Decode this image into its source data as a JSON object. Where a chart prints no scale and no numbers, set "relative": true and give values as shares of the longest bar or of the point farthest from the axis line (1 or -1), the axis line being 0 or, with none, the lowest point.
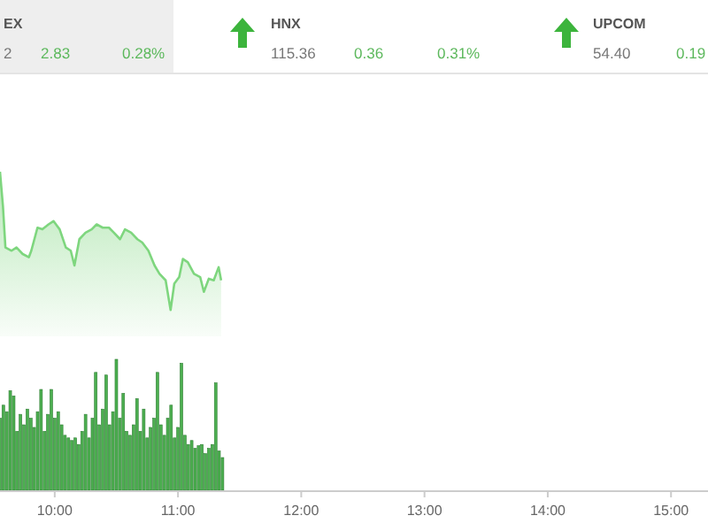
{
  "chart_data": [
    {
      "type": "other",
      "annotations": [
        "EX",
        "2",
        "2.83",
        "0.28%",
        "HNX",
        "115.36",
        "0.36",
        "0.31%",
        "UPCOM",
        "54.40",
        "0.19"
      ]
    },
    {
      "type": "area",
      "relative": true,
      "tick_labels": false,
      "xlim": [
        9.556,
        15.3
      ],
      "series": [
        {
          "color": "#7ed67e",
          "x": [
            9.556,
            9.58,
            9.6,
            9.65,
            9.69,
            9.74,
            9.79,
            9.81,
            9.86,
            9.9,
            9.95,
            9.99,
            10.04,
            10.09,
            10.13,
            10.16,
            10.2,
            10.25,
            10.3,
            10.34,
            10.39,
            10.44,
            10.48,
            10.53,
            10.57,
            10.62,
            10.67,
            10.71,
            10.76,
            10.81,
            10.85,
            10.9,
            10.94,
            10.97,
            11.01,
            11.04,
            11.08,
            11.13,
            11.18,
            11.21,
            11.25,
            11.29,
            11.33,
            11.35
          ],
          "values": [
            1,
            0.79,
            0.54,
            0.52,
            0.54,
            0.5,
            0.48,
            0.52,
            0.66,
            0.65,
            0.68,
            0.7,
            0.65,
            0.54,
            0.52,
            0.43,
            0.59,
            0.63,
            0.65,
            0.68,
            0.66,
            0.66,
            0.63,
            0.59,
            0.65,
            0.63,
            0.59,
            0.57,
            0.52,
            0.43,
            0.38,
            0.34,
            0.16,
            0.32,
            0.36,
            0.47,
            0.45,
            0.38,
            0.36,
            0.27,
            0.35,
            0.34,
            0.42,
            0.34
          ]
        }
      ]
    },
    {
      "type": "bar",
      "relative": true,
      "tick_labels": "x",
      "xlim": [
        9.556,
        15.3
      ],
      "xticks": [
        {
          "value": 10,
          "label": "10:00"
        },
        {
          "value": 11,
          "label": "11:00"
        },
        {
          "value": 12,
          "label": "12:00"
        },
        {
          "value": 13,
          "label": "13:00"
        },
        {
          "value": 14,
          "label": "14:00"
        },
        {
          "value": 15,
          "label": "15:00"
        }
      ],
      "series": [
        {
          "color": "#4caf50",
          "x": [
            9.556,
            9.583,
            9.611,
            9.639,
            9.667,
            9.694,
            9.722,
            9.75,
            9.778,
            9.806,
            9.833,
            9.861,
            9.889,
            9.917,
            9.944,
            9.972,
            10,
            10.028,
            10.056,
            10.083,
            10.111,
            10.139,
            10.167,
            10.194,
            10.222,
            10.25,
            10.278,
            10.306,
            10.333,
            10.361,
            10.389,
            10.417,
            10.444,
            10.472,
            10.5,
            10.528,
            10.556,
            10.583,
            10.611,
            10.639,
            10.667,
            10.694,
            10.722,
            10.75,
            10.778,
            10.806,
            10.833,
            10.861,
            10.889,
            10.917,
            10.944,
            10.972,
            11,
            11.028,
            11.056,
            11.083,
            11.111,
            11.139,
            11.167,
            11.194,
            11.222,
            11.25,
            11.278,
            11.306,
            11.333,
            11.361
          ],
          "values": [
            0.55,
            0.65,
            0.6,
            0.76,
            0.72,
            0.45,
            0.58,
            0.5,
            0.62,
            0.55,
            0.48,
            0.6,
            0.77,
            0.45,
            0.58,
            0.77,
            0.55,
            0.6,
            0.5,
            0.42,
            0.4,
            0.38,
            0.4,
            0.35,
            0.45,
            0.58,
            0.4,
            0.55,
            0.9,
            0.5,
            0.62,
            0.88,
            0.5,
            0.6,
            1,
            0.55,
            0.74,
            0.45,
            0.42,
            0.5,
            0.7,
            0.45,
            0.62,
            0.4,
            0.48,
            0.55,
            0.9,
            0.5,
            0.42,
            0.55,
            0.65,
            0.4,
            0.48,
            0.97,
            0.42,
            0.35,
            0.38,
            0.32,
            0.34,
            0.35,
            0.28,
            0.32,
            0.35,
            0.82,
            0.3,
            0.25
          ]
        }
      ]
    }
  ]
}
